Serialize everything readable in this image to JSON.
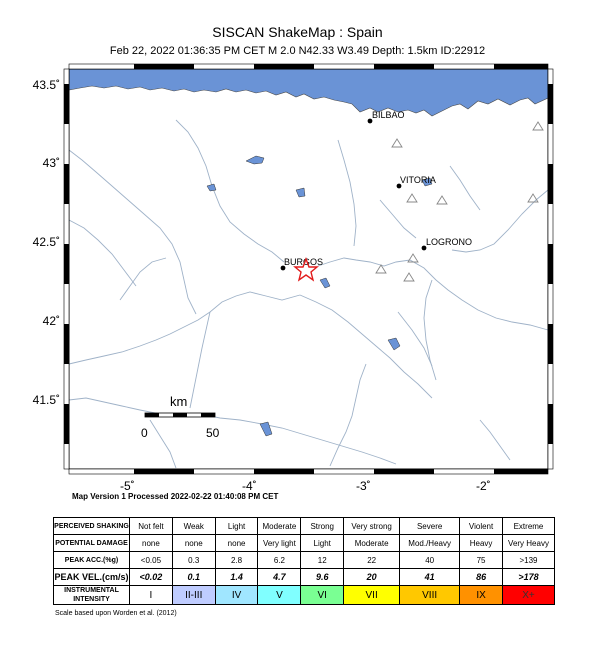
{
  "header": {
    "title": "SISCAN ShakeMap : Spain",
    "subtitle": "Feb 22, 2022 01:36:35 PM CET    M 2.0    N42.33 W3.49    Depth: 1.5km    ID:22912"
  },
  "map": {
    "lon_ticks": [
      "-5˚",
      "-4˚",
      "-3˚",
      "-2˚"
    ],
    "lat_ticks": [
      "43.5˚",
      "43˚",
      "42.5˚",
      "42˚",
      "41.5˚"
    ],
    "cities": [
      "BILBAO",
      "VITORIA",
      "LOGRONO",
      "BURGOS"
    ],
    "scalebar": {
      "unit": "km",
      "min": "0",
      "max": "50"
    },
    "colors": {
      "sea": "#6a93d6",
      "land": "#ffffff",
      "river": "#9fb2c8",
      "epicenter": "#e21b1b",
      "station": "#888888"
    },
    "icons": {
      "epicenter": "star-icon",
      "station": "triangle-icon",
      "city": "dot-icon"
    }
  },
  "processed": "Map Version 1 Processed 2022-02-22 01:40:08 PM CET",
  "legend": {
    "row_labels": {
      "shaking": "PERCEIVED SHAKING",
      "damage": "POTENTIAL DAMAGE",
      "acc": "PEAK ACC.(%g)",
      "vel": "PEAK VEL.(cm/s)",
      "intensity": "INSTRUMENTAL INTENSITY"
    },
    "shaking": [
      "Not felt",
      "Weak",
      "Light",
      "Moderate",
      "Strong",
      "Very strong",
      "Severe",
      "Violent",
      "Extreme"
    ],
    "damage": [
      "none",
      "none",
      "none",
      "Very light",
      "Light",
      "Moderate",
      "Mod./Heavy",
      "Heavy",
      "Very Heavy"
    ],
    "acc": [
      "<0.05",
      "0.3",
      "2.8",
      "6.2",
      "12",
      "22",
      "40",
      "75",
      ">139"
    ],
    "vel": [
      "<0.02",
      "0.1",
      "1.4",
      "4.7",
      "9.6",
      "20",
      "41",
      "86",
      ">178"
    ],
    "intensity": [
      "I",
      "II-III",
      "IV",
      "V",
      "VI",
      "VII",
      "VIII",
      "IX",
      "X+"
    ],
    "intensity_colors": [
      "#ffffff",
      "#bfccff",
      "#a0e6ff",
      "#80ffff",
      "#7aff93",
      "#ffff00",
      "#ffc800",
      "#ff9100",
      "#ff0000"
    ],
    "scale_note": "Scale based upon Worden et al. (2012)"
  }
}
